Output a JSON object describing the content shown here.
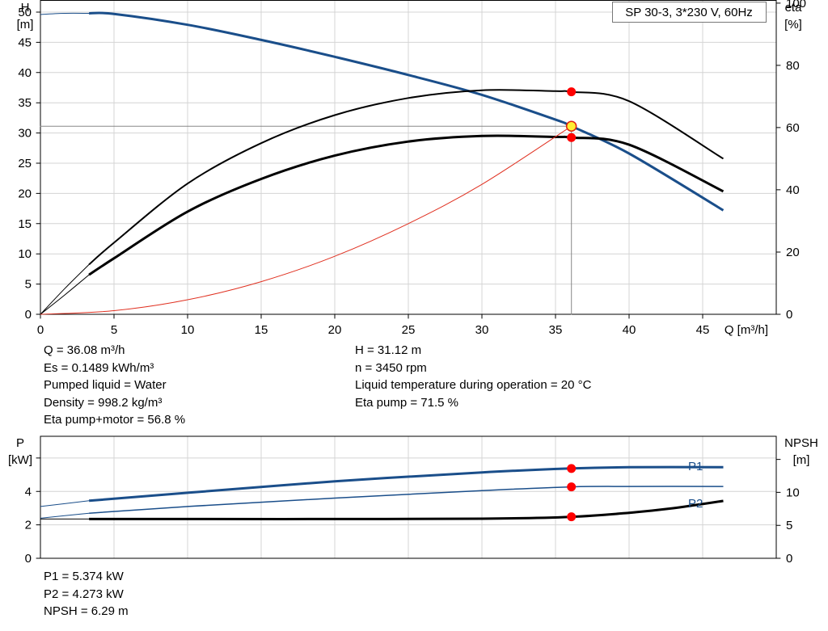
{
  "chart_data": [
    {
      "type": "line",
      "title": "SP 30-3, 3*230 V, 60Hz",
      "xlabel": "Q [m³/h]",
      "ylabel_left": [
        "H",
        "[m]"
      ],
      "ylabel_right": [
        "eta",
        "[%]"
      ],
      "xlim": [
        0,
        50
      ],
      "ylim_left": [
        0,
        52
      ],
      "ylim_right": [
        0,
        101
      ],
      "x_ticks": [
        0,
        5,
        10,
        15,
        20,
        25,
        30,
        35,
        40,
        45
      ],
      "y_ticks_left": [
        0,
        5,
        10,
        15,
        20,
        25,
        30,
        35,
        40,
        45,
        50
      ],
      "y_ticks_right": [
        0,
        20,
        40,
        60,
        80,
        100
      ],
      "grid": true,
      "series": [
        {
          "key": "head",
          "axis": "left",
          "color": "#1a4e8a",
          "width": 3,
          "x": [
            3.3,
            5,
            10,
            15,
            20,
            25,
            30,
            35,
            36.08,
            40,
            46.4
          ],
          "y": [
            49.8,
            49.7,
            47.9,
            45.4,
            42.6,
            39.6,
            36.3,
            32.2,
            31.12,
            26.6,
            17.2
          ]
        },
        {
          "key": "head-extension",
          "axis": "left",
          "color": "#1a4e8a",
          "width": 1,
          "x": [
            0,
            1.6,
            3.3
          ],
          "y": [
            49.6,
            49.8,
            49.8
          ]
        },
        {
          "key": "eta-pump",
          "axis": "right",
          "color": "#000000",
          "width": 2,
          "x": [
            3.3,
            5,
            10,
            15,
            20,
            25,
            30,
            35,
            36.08,
            40,
            46.4
          ],
          "y": [
            16,
            23,
            42,
            55,
            64,
            69.5,
            72,
            71.7,
            71.5,
            68.5,
            50
          ]
        },
        {
          "key": "eta-pump-extension",
          "axis": "right",
          "color": "#000000",
          "width": 1,
          "x": [
            0,
            1.6,
            3.3
          ],
          "y": [
            0,
            8,
            16
          ]
        },
        {
          "key": "eta-pump-motor",
          "axis": "right",
          "color": "#000000",
          "width": 3,
          "x": [
            3.3,
            5,
            10,
            15,
            20,
            25,
            30,
            35,
            36.08,
            40,
            46.4
          ],
          "y": [
            12.7,
            18,
            33,
            43.5,
            51,
            55.5,
            57.3,
            57,
            56.8,
            54.5,
            39.5
          ]
        },
        {
          "key": "eta-pump-motor-extension",
          "axis": "right",
          "color": "#000000",
          "width": 1,
          "x": [
            0,
            1.6,
            3.3
          ],
          "y": [
            0,
            6,
            12.7
          ]
        },
        {
          "key": "system-curve",
          "axis": "left",
          "color": "#e03020",
          "width": 1,
          "x": [
            0,
            5,
            10,
            15,
            20,
            25,
            30,
            36.08
          ],
          "y": [
            0,
            0.6,
            2.4,
            5.4,
            9.6,
            15,
            21.5,
            31.12
          ]
        }
      ],
      "duty_point": {
        "x": 36.08,
        "y": 31.12
      }
    },
    {
      "type": "line",
      "ylabel_left": [
        "P",
        "[kW]"
      ],
      "ylabel_right": [
        "NPSH",
        "[m]"
      ],
      "xlim": [
        0,
        50
      ],
      "ylim_left": [
        0,
        7.3
      ],
      "ylim_right": [
        0,
        18.5
      ],
      "y_ticks_left": [
        0,
        2,
        4
      ],
      "y_ticks_right": [
        0,
        5,
        10
      ],
      "grid": true,
      "series": [
        {
          "key": "p1",
          "name": "P1",
          "axis": "left",
          "color": "#1a4e8a",
          "width": 3,
          "x": [
            3.3,
            10,
            20,
            30,
            36.08,
            40,
            46.4
          ],
          "y": [
            3.44,
            3.92,
            4.6,
            5.14,
            5.374,
            5.45,
            5.45
          ]
        },
        {
          "key": "p1-extension",
          "axis": "left",
          "color": "#1a4e8a",
          "width": 1,
          "x": [
            0,
            3.3
          ],
          "y": [
            3.1,
            3.44
          ]
        },
        {
          "key": "p2",
          "name": "P2",
          "axis": "left",
          "color": "#1a4e8a",
          "width": 1.5,
          "x": [
            3.3,
            10,
            20,
            30,
            36.08,
            40,
            46.4
          ],
          "y": [
            2.7,
            3.1,
            3.6,
            4.05,
            4.273,
            4.3,
            4.3
          ]
        },
        {
          "key": "p2-extension",
          "axis": "left",
          "color": "#1a4e8a",
          "width": 1,
          "x": [
            0,
            3.3
          ],
          "y": [
            2.4,
            2.7
          ]
        },
        {
          "key": "npsh",
          "axis": "right",
          "color": "#000000",
          "width": 3,
          "x": [
            3.3,
            10,
            20,
            30,
            36.08,
            40,
            43,
            46.4
          ],
          "y": [
            5.95,
            5.95,
            5.95,
            6.0,
            6.29,
            6.9,
            7.6,
            8.7
          ]
        },
        {
          "key": "npsh-extension",
          "axis": "right",
          "color": "#000000",
          "width": 1,
          "x": [
            0,
            3.3
          ],
          "y": [
            5.95,
            5.95
          ]
        }
      ],
      "duty_points": [
        {
          "axis": "left",
          "x": 36.08,
          "y": 5.374
        },
        {
          "axis": "left",
          "x": 36.08,
          "y": 4.273
        },
        {
          "axis": "right",
          "x": 36.08,
          "y": 6.29
        }
      ]
    }
  ],
  "info": {
    "left": [
      "Q = 36.08 m³/h",
      "Es = 0.1489 kWh/m³",
      "Pumped liquid = Water",
      "Density = 998.2 kg/m³",
      "Eta pump+motor = 56.8 %"
    ],
    "right": [
      "H = 31.12 m",
      "n = 3450 rpm",
      "Liquid temperature during operation = 20 °C",
      "Eta pump = 71.5 %"
    ],
    "bottom": [
      "P1 = 5.374 kW",
      "P2 = 4.273 kW",
      "NPSH = 6.29 m"
    ]
  }
}
